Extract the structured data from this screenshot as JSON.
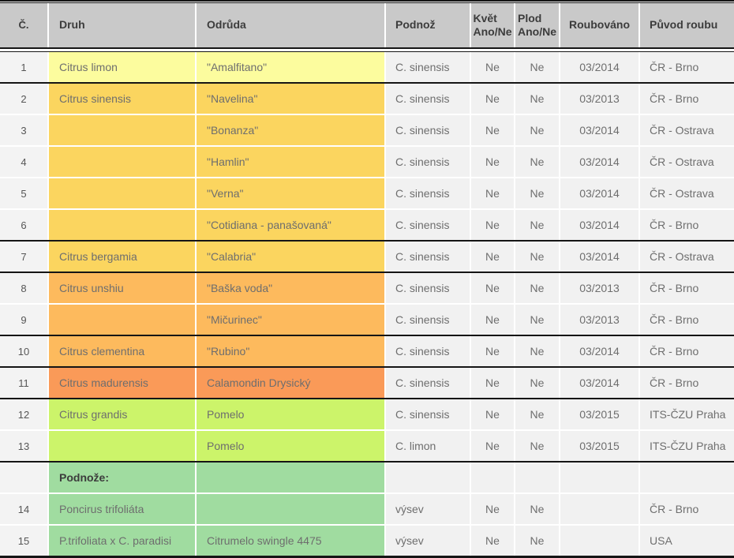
{
  "table": {
    "header": {
      "num": "Č.",
      "druh": "Druh",
      "odruda": "Odrůda",
      "podnoz": "Podnož",
      "kvet": "Květ\nAno/Ne",
      "plod": "Plod\nAno/Ne",
      "roubovano": "Roubováno",
      "puvod": "Původ  roubu"
    },
    "colors": {
      "header_bg": "#c9c9c9",
      "header_text": "#3c3c3c",
      "cell_text": "#6e6e6e",
      "neutral_bg": "#f1f1f1",
      "num_bg": "#f3f3f3",
      "border_dark": "#151515",
      "light_yellow": "#fcfc9e",
      "gold": "#fbd55f",
      "orange": "#fdba5d",
      "deep_orange": "#fa9a58",
      "yellow_green": "#ccf46a",
      "green": "#a0dca0"
    },
    "rows": [
      {
        "num": "1",
        "druh": "Citrus limon",
        "odruda": "\"Amalfitano\"",
        "podnoz": "C. sinensis",
        "kvet": "Ne",
        "plod": "Ne",
        "roubovano": "03/2014",
        "puvod": "ČR - Brno",
        "group": "light_yellow",
        "sep": "none",
        "bold": false
      },
      {
        "num": "2",
        "druh": "Citrus sinensis",
        "odruda": "\"Navelina\"",
        "podnoz": "C. sinensis",
        "kvet": "Ne",
        "plod": "Ne",
        "roubovano": "03/2013",
        "puvod": "ČR - Brno",
        "group": "gold",
        "sep": "dark",
        "bold": false
      },
      {
        "num": "3",
        "druh": "",
        "odruda": "\"Bonanza\"",
        "podnoz": "C. sinensis",
        "kvet": "Ne",
        "plod": "Ne",
        "roubovano": "03/2014",
        "puvod": "ČR - Ostrava",
        "group": "gold",
        "sep": "thin",
        "bold": false
      },
      {
        "num": "4",
        "druh": "",
        "odruda": "\"Hamlin\"",
        "podnoz": "C. sinensis",
        "kvet": "Ne",
        "plod": "Ne",
        "roubovano": "03/2014",
        "puvod": "ČR - Ostrava",
        "group": "gold",
        "sep": "thin",
        "bold": false
      },
      {
        "num": "5",
        "druh": "",
        "odruda": "\"Verna\"",
        "podnoz": "C. sinensis",
        "kvet": "Ne",
        "plod": "Ne",
        "roubovano": "03/2014",
        "puvod": "ČR - Ostrava",
        "group": "gold",
        "sep": "thin",
        "bold": false
      },
      {
        "num": "6",
        "druh": "",
        "odruda": "\"Cotidiana - panašovaná\"",
        "podnoz": "C. sinensis",
        "kvet": "Ne",
        "plod": "Ne",
        "roubovano": "03/2014",
        "puvod": "ČR - Brno",
        "group": "gold",
        "sep": "thin",
        "bold": false
      },
      {
        "num": "7",
        "druh": "Citrus bergamia",
        "odruda": "\"Calabria\"",
        "podnoz": "C. sinensis",
        "kvet": "Ne",
        "plod": "Ne",
        "roubovano": "03/2014",
        "puvod": "ČR - Ostrava",
        "group": "gold",
        "sep": "dark",
        "bold": false
      },
      {
        "num": "8",
        "druh": "Citrus unshiu",
        "odruda": "\"Baška voda\"",
        "podnoz": "C. sinensis",
        "kvet": "Ne",
        "plod": "Ne",
        "roubovano": "03/2013",
        "puvod": "ČR - Brno",
        "group": "orange",
        "sep": "dark",
        "bold": false
      },
      {
        "num": "9",
        "druh": "",
        "odruda": "\"Mičurinec\"",
        "podnoz": "C. sinensis",
        "kvet": "Ne",
        "plod": "Ne",
        "roubovano": "03/2013",
        "puvod": "ČR - Brno",
        "group": "orange",
        "sep": "thin",
        "bold": false
      },
      {
        "num": "10",
        "druh": "Citrus clementina",
        "odruda": "\"Rubino\"",
        "podnoz": "C. sinensis",
        "kvet": "Ne",
        "plod": "Ne",
        "roubovano": "03/2014",
        "puvod": "ČR - Brno",
        "group": "orange",
        "sep": "dark",
        "bold": false
      },
      {
        "num": "11",
        "druh": "Citrus madurensis",
        "odruda": "Calamondin Drysický",
        "podnoz": "C. sinensis",
        "kvet": "Ne",
        "plod": "Ne",
        "roubovano": "03/2014",
        "puvod": "ČR - Brno",
        "group": "deep_orange",
        "sep": "dark",
        "bold": false
      },
      {
        "num": "12",
        "druh": "Citrus grandis",
        "odruda": "Pomelo",
        "podnoz": "C. sinensis",
        "kvet": "Ne",
        "plod": "Ne",
        "roubovano": "03/2015",
        "puvod": "ITS-ČZU Praha",
        "group": "yellow_green",
        "sep": "dark",
        "bold": false
      },
      {
        "num": "13",
        "druh": "",
        "odruda": "Pomelo",
        "podnoz": "C. limon",
        "kvet": "Ne",
        "plod": "Ne",
        "roubovano": "03/2015",
        "puvod": "ITS-ČZU Praha",
        "group": "yellow_green",
        "sep": "thin",
        "bold": false
      },
      {
        "num": "",
        "druh": "Podnože:",
        "odruda": "",
        "podnoz": "",
        "kvet": "",
        "plod": "",
        "roubovano": "",
        "puvod": "",
        "group": "green",
        "sep": "dark",
        "bold": true
      },
      {
        "num": "14",
        "druh": "Poncirus trifoliáta",
        "odruda": "",
        "podnoz": "výsev",
        "kvet": "Ne",
        "plod": "Ne",
        "roubovano": "",
        "puvod": "ČR - Brno",
        "group": "green",
        "sep": "thin",
        "bold": false
      },
      {
        "num": "15",
        "druh": "P.trifoliata x C. paradisi",
        "odruda": "Citrumelo swingle 4475",
        "podnoz": "výsev",
        "kvet": "Ne",
        "plod": "Ne",
        "roubovano": "",
        "puvod": "USA",
        "group": "green",
        "sep": "thin",
        "bold": false
      }
    ]
  }
}
